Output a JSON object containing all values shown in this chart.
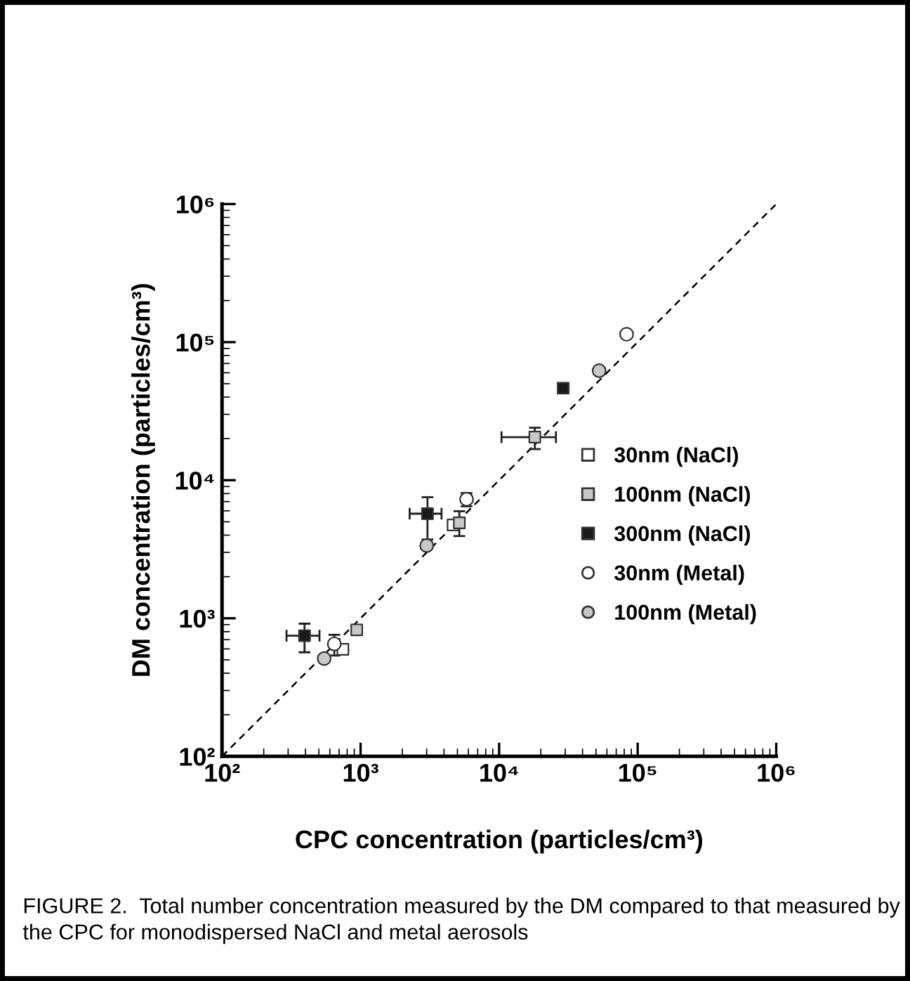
{
  "chart_data": {
    "type": "scatter",
    "xlabel": "CPC concentration (particles/cm³)",
    "ylabel": "DM concentration (particles/cm³)",
    "log": "xy",
    "xlim": [
      100,
      1000000
    ],
    "ylim": [
      100,
      1000000
    ],
    "xticks": [
      {
        "value": 100,
        "label": "10²"
      },
      {
        "value": 1000,
        "label": "10³"
      },
      {
        "value": 10000,
        "label": "10⁴"
      },
      {
        "value": 100000,
        "label": "10⁵"
      },
      {
        "value": 1000000,
        "label": "10⁶"
      }
    ],
    "yticks": [
      {
        "value": 100,
        "label": "10²"
      },
      {
        "value": 1000,
        "label": "10³"
      },
      {
        "value": 10000,
        "label": "10⁴"
      },
      {
        "value": 100000,
        "label": "10⁵"
      },
      {
        "value": 1000000,
        "label": "10⁶"
      }
    ],
    "grid": false,
    "legend": "right",
    "series": [
      {
        "type": "line",
        "color": "#000000",
        "line_style": "dashed",
        "marker": "none",
        "x": [
          100,
          1000000
        ],
        "values": [
          100,
          1000000
        ]
      },
      {
        "name": "30nm (NaCl)",
        "marker": "square",
        "color": "#ffffff",
        "x": [
          745,
          4650
        ],
        "values": [
          596,
          4740
        ]
      },
      {
        "name": "100nm (NaCl)",
        "marker": "square",
        "color": "#c8c8c8",
        "x": [
          938,
          5160,
          18100
        ],
        "values": [
          824,
          4910,
          20500
        ],
        "errors": [
          null,
          [
            3940,
            5960
          ],
          [
            16800,
            24000
          ]
        ],
        "xerrors": [
          null,
          null,
          [
            10400,
            25700
          ]
        ]
      },
      {
        "name": "300nm (NaCl)",
        "marker": "square",
        "color": "#1a1a1a",
        "x": [
          394,
          3040,
          29000
        ],
        "values": [
          748,
          5720,
          46400
        ],
        "errors": [
          [
            567,
            914
          ],
          [
            3720,
            7530
          ],
          null
        ],
        "xerrors": [
          [
            292,
            505
          ],
          [
            2260,
            3840
          ],
          null
        ]
      },
      {
        "name": "30nm (Metal)",
        "marker": "circle",
        "color": "#ffffff",
        "x": [
          646,
          5820,
          83200
        ],
        "values": [
          652,
          7280,
          114000
        ],
        "errors": [
          [
            537,
            759
          ],
          [
            6470,
            8070
          ],
          null
        ]
      },
      {
        "name": "100nm (Metal)",
        "marker": "circle",
        "color": "#c8c8c8",
        "x": [
          546,
          3000,
          52700
        ],
        "values": [
          511,
          3360,
          62100
        ]
      }
    ],
    "annotations": [
      "FIGURE 2.  Total number concentration measured by the DM compared to that measured by the CPC for monodispersed NaCl and metal aerosols"
    ]
  }
}
